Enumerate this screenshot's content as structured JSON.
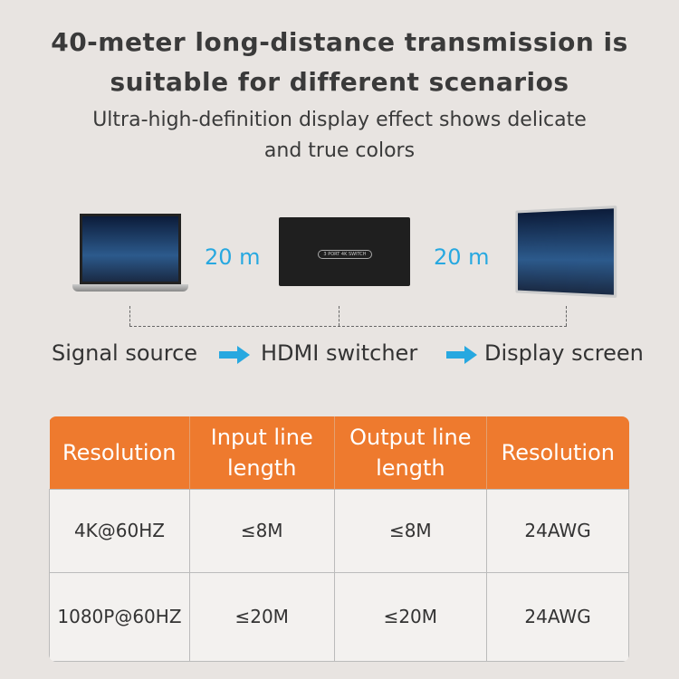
{
  "title": [
    "40-meter long-distance transmission is",
    "suitable for different scenarios"
  ],
  "subtitle": [
    "Ultra-high-definition display effect shows delicate",
    "and true colors"
  ],
  "diagram": {
    "switch_label": "3 PORT 4K SWITCH",
    "distance_left": "20 m",
    "distance_right": "20 m",
    "flow": [
      "Signal source",
      "HDMI switcher",
      "Display screen"
    ],
    "accent": "#27a8e0"
  },
  "table": {
    "headers": [
      [
        "Resolution"
      ],
      [
        "Input line",
        "length"
      ],
      [
        "Output line",
        "length"
      ],
      [
        "Resolution"
      ]
    ],
    "rows": [
      [
        "4K@60HZ",
        "≤8M",
        "≤8M",
        "24AWG"
      ],
      [
        "1080P@60HZ",
        "≤20M",
        "≤20M",
        "24AWG"
      ]
    ],
    "header_color": "#ee7a2e"
  }
}
